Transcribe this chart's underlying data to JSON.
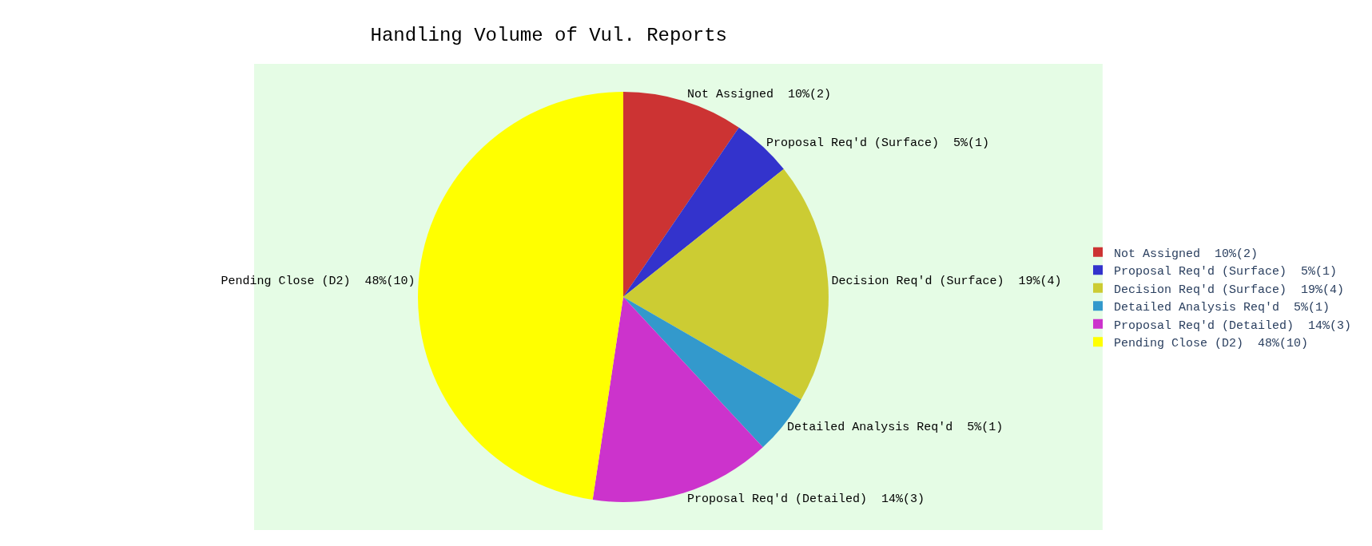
{
  "chart_data": {
    "type": "pie",
    "title": "Handling Volume of Vul. Reports",
    "categories": [
      "Not Assigned",
      "Proposal Req'd (Surface)",
      "Decision Req'd (Surface)",
      "Detailed Analysis Req'd",
      "Proposal Req'd (Detailed)",
      "Pending Close (D2)"
    ],
    "values": [
      2,
      1,
      4,
      1,
      3,
      10
    ],
    "value_labels": [
      "10%(2)",
      "5%(1)",
      "19%(4)",
      "5%(1)",
      "14%(3)",
      "48%(10)"
    ],
    "colors": [
      "#cc3333",
      "#3333cc",
      "#cccc33",
      "#3399cc",
      "#cc33cc",
      "#ffff00"
    ],
    "legend": "right"
  }
}
